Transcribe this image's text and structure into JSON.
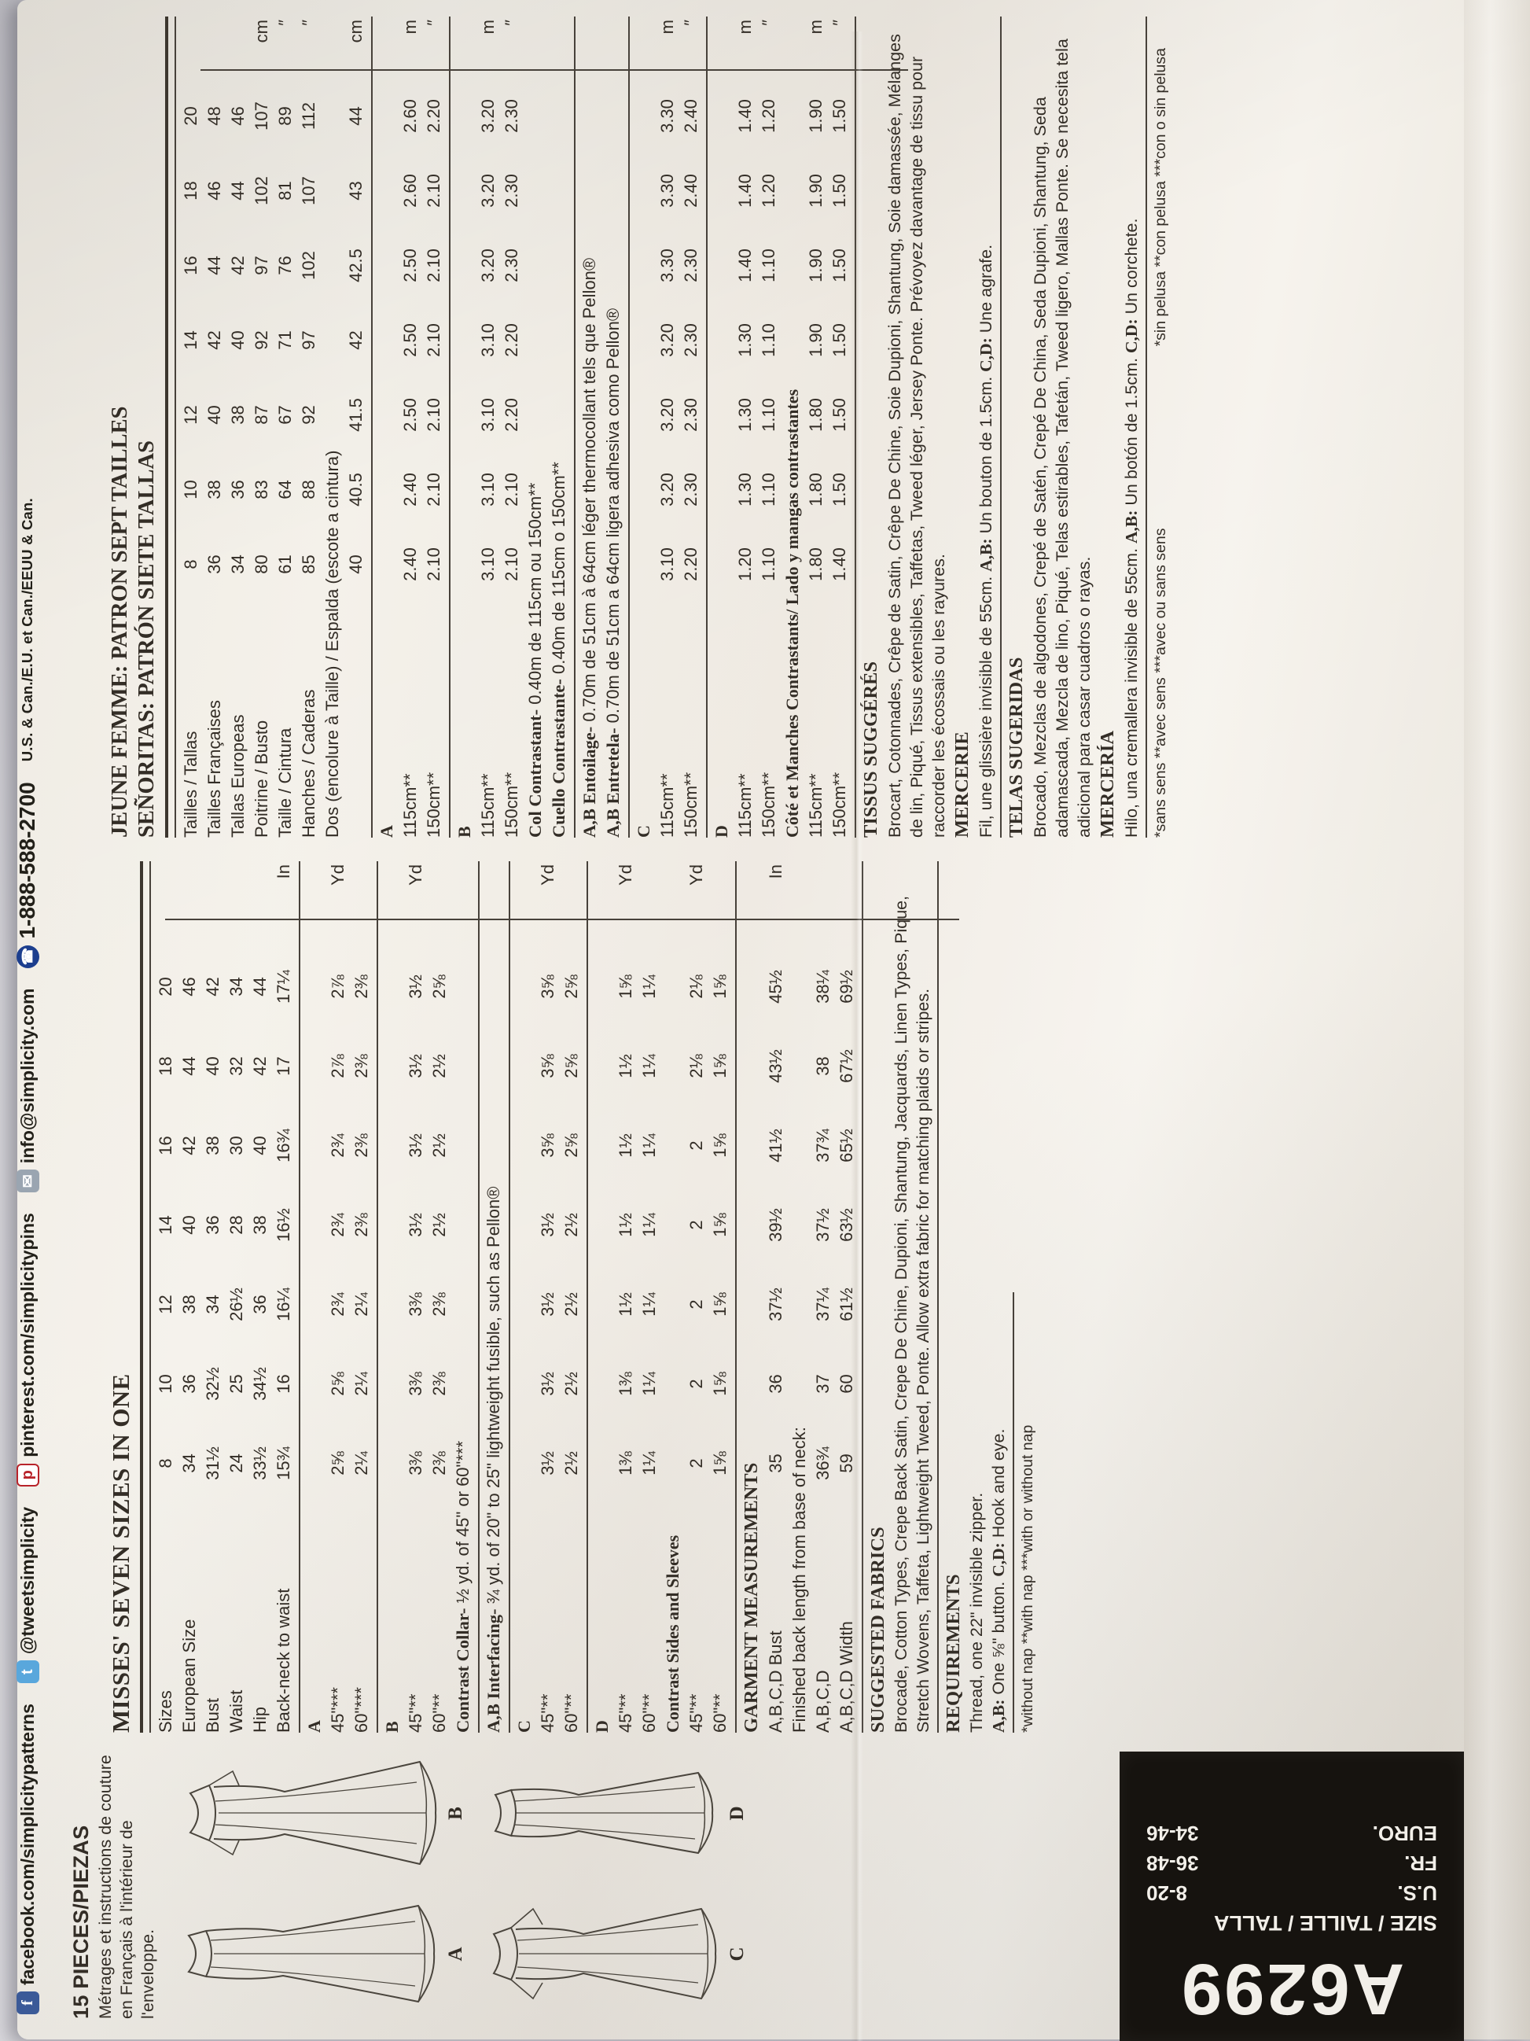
{
  "contact_strip": {
    "items": [
      {
        "icon": "facebook-icon",
        "text": "facebook.com/simplicitypatterns"
      },
      {
        "icon": "twitter-icon",
        "text": "@tweetsimplicity"
      },
      {
        "icon": "pinterest-icon",
        "text": "pinterest.com/simplicitypins"
      },
      {
        "icon": "email-icon",
        "text": "info@simplicity.com"
      },
      {
        "icon": "phone-icon",
        "text": "1-888-588-2700"
      }
    ],
    "suffix": "U.S. & Can./E.U. et Can./EEUU & Can."
  },
  "left_panel": {
    "pieces_title": "15 PIECES/PIEZAS",
    "note_lines": "Métrages et instructions de couture en Français à l'intérieur de l'enveloppe.",
    "views": [
      "A",
      "B",
      "C",
      "D"
    ]
  },
  "size_box": {
    "code": "A6299",
    "header": "SIZE / TAILLE / TALLA",
    "rows": [
      {
        "label": "U.S.",
        "value": "8-20"
      },
      {
        "label": "FR.",
        "value": "36-48"
      },
      {
        "label": "EURO.",
        "value": "34-46"
      }
    ]
  },
  "english": {
    "title": "MISSES' SEVEN SIZES IN ONE",
    "rows": [
      {
        "label": "Sizes",
        "values": [
          "8",
          "10",
          "12",
          "14",
          "16",
          "18",
          "20"
        ]
      },
      {
        "label": "European Size",
        "values": [
          "34",
          "36",
          "38",
          "40",
          "42",
          "44",
          "46"
        ]
      },
      {
        "label": "Bust",
        "values": [
          "31½",
          "32½",
          "34",
          "36",
          "38",
          "40",
          "42"
        ]
      },
      {
        "label": "Waist",
        "values": [
          "24",
          "25",
          "26½",
          "28",
          "30",
          "32",
          "34"
        ]
      },
      {
        "label": "Hip",
        "values": [
          "33½",
          "34½",
          "36",
          "38",
          "40",
          "42",
          "44"
        ]
      },
      {
        "label": "Back-neck to waist",
        "values": [
          "15¾",
          "16",
          "16¼",
          "16½",
          "16¾",
          "17",
          "17¼"
        ],
        "unit": "In"
      },
      {
        "label": "A",
        "bold": true,
        "values": []
      },
      {
        "label": "45\"***",
        "values": [
          "2⅝",
          "2⅝",
          "2¾",
          "2¾",
          "2¾",
          "2⅞",
          "2⅞"
        ],
        "unit": "Yd"
      },
      {
        "label": "60\"***",
        "values": [
          "2¼",
          "2¼",
          "2¼",
          "2⅜",
          "2⅜",
          "2⅜",
          "2⅜"
        ]
      },
      {
        "label": "B",
        "bold": true,
        "values": []
      },
      {
        "label": "45\"**",
        "values": [
          "3⅜",
          "3⅜",
          "3⅜",
          "3½",
          "3½",
          "3½",
          "3½"
        ],
        "unit": "Yd"
      },
      {
        "label": "60\"**",
        "values": [
          "2⅜",
          "2⅜",
          "2⅜",
          "2½",
          "2½",
          "2½",
          "2⅝"
        ]
      },
      {
        "label": "C",
        "bold": true,
        "values": []
      },
      {
        "label": "45\"**",
        "values": [
          "3½",
          "3½",
          "3½",
          "3½",
          "3⅝",
          "3⅝",
          "3⅝"
        ],
        "unit": "Yd"
      },
      {
        "label": "60\"**",
        "values": [
          "2½",
          "2½",
          "2½",
          "2½",
          "2⅝",
          "2⅝",
          "2⅝"
        ]
      },
      {
        "label": "D",
        "bold": true,
        "values": []
      },
      {
        "label": "45\"**",
        "values": [
          "1⅜",
          "1⅜",
          "1½",
          "1½",
          "1½",
          "1½",
          "1⅝"
        ],
        "unit": "Yd"
      },
      {
        "label": "60\"**",
        "values": [
          "1¼",
          "1¼",
          "1¼",
          "1¼",
          "1¼",
          "1¼",
          "1¼"
        ]
      },
      {
        "label": "Contrast Sides and Sleeves",
        "bold": true,
        "values": []
      },
      {
        "label": "45\"**",
        "values": [
          "2",
          "2",
          "2",
          "2",
          "2",
          "2⅛",
          "2⅛"
        ],
        "unit": "Yd"
      },
      {
        "label": "60\"**",
        "values": [
          "1⅝",
          "1⅝",
          "1⅝",
          "1⅝",
          "1⅝",
          "1⅝",
          "1⅝"
        ]
      },
      {
        "label": "A,B,C,D Bust",
        "values": [
          "35",
          "36",
          "37½",
          "39½",
          "41½",
          "43½",
          "45½"
        ],
        "unit": "In"
      },
      {
        "label": "Finished back length from base of neck:",
        "values": []
      },
      {
        "label": "A,B,C,D",
        "values": [
          "36¾",
          "37",
          "37¼",
          "37½",
          "37¾",
          "38",
          "38¼"
        ]
      },
      {
        "label": "A,B,C,D Width",
        "values": [
          "59",
          "60",
          "61½",
          "63½",
          "65½",
          "67½",
          "69½"
        ]
      }
    ],
    "lines": {
      "collar": [
        {
          "b": "Contrast Collar-"
        },
        {
          "t": " ½ yd. of 45\" or 60\"***"
        }
      ],
      "interfacing": [
        {
          "b": "A,B Interfacing-"
        },
        {
          "t": " ¾ yd. of 20\" to 25\" lightweight fusible, such as Pellon®"
        }
      ],
      "req1": [
        {
          "t": "Thread, one 22\" invisible zipper."
        }
      ],
      "req2": [
        {
          "b": "A,B:"
        },
        {
          "t": " One ⅝\" button. "
        },
        {
          "b": "C,D:"
        },
        {
          "t": " Hook and eye."
        }
      ]
    },
    "garment_heading": "GARMENT MEASUREMENTS",
    "fabrics_heading": "SUGGESTED FABRICS",
    "fabrics_text": "Brocade, Cotton Types, Crepe Back Satin, Crepe De Chine, Dupioni, Shantung, Jacquards, Linen Types, Pique, Stretch Wovens, Taffeta, Lightweight Tweed, Ponte. Allow extra fabric for matching plaids or stripes.",
    "requirements_heading": "REQUIREMENTS",
    "footnote": "*without nap    **with nap    ***with or without nap"
  },
  "french": {
    "title1": "JEUNE FEMME: PATRON SEPT TAILLES",
    "title2": "SEÑORITAS: PATRÓN SIETE TALLAS",
    "rows": [
      {
        "label": "Tailles / Tallas",
        "values": [
          "8",
          "10",
          "12",
          "14",
          "16",
          "18",
          "20"
        ]
      },
      {
        "label": "Tailles Françaises",
        "values": [
          "36",
          "38",
          "40",
          "42",
          "44",
          "46",
          "48"
        ]
      },
      {
        "label": "Tallas Europeas",
        "values": [
          "34",
          "36",
          "38",
          "40",
          "42",
          "44",
          "46"
        ]
      },
      {
        "label": "Poitrine / Busto",
        "values": [
          "80",
          "83",
          "87",
          "92",
          "97",
          "102",
          "107"
        ],
        "unit": "cm"
      },
      {
        "label": "Taille / Cintura",
        "values": [
          "61",
          "64",
          "67",
          "71",
          "76",
          "81",
          "89"
        ],
        "unit": "″"
      },
      {
        "label": "Hanches / Caderas",
        "values": [
          "85",
          "88",
          "92",
          "97",
          "102",
          "107",
          "112"
        ],
        "unit": "″"
      },
      {
        "label": "",
        "values": [
          "40",
          "40.5",
          "41.5",
          "42",
          "42.5",
          "43",
          "44"
        ],
        "unit": "cm"
      },
      {
        "label": "A",
        "bold": true,
        "values": []
      },
      {
        "label": "115cm**",
        "values": [
          "2.40",
          "2.40",
          "2.50",
          "2.50",
          "2.50",
          "2.60",
          "2.60"
        ],
        "unit": "m"
      },
      {
        "label": "150cm**",
        "values": [
          "2.10",
          "2.10",
          "2.10",
          "2.10",
          "2.10",
          "2.10",
          "2.20"
        ],
        "unit": "″"
      },
      {
        "label": "B",
        "bold": true,
        "values": []
      },
      {
        "label": "115cm**",
        "values": [
          "3.10",
          "3.10",
          "3.10",
          "3.10",
          "3.20",
          "3.20",
          "3.20"
        ],
        "unit": "m"
      },
      {
        "label": "150cm**",
        "values": [
          "2.10",
          "2.10",
          "2.20",
          "2.20",
          "2.30",
          "2.30",
          "2.30"
        ],
        "unit": "″"
      },
      {
        "label": "C",
        "bold": true,
        "values": []
      },
      {
        "label": "115cm**",
        "values": [
          "3.10",
          "3.20",
          "3.20",
          "3.20",
          "3.30",
          "3.30",
          "3.30"
        ],
        "unit": "m"
      },
      {
        "label": "150cm**",
        "values": [
          "2.20",
          "2.30",
          "2.30",
          "2.30",
          "2.30",
          "2.40",
          "2.40"
        ],
        "unit": "″"
      },
      {
        "label": "D",
        "bold": true,
        "values": []
      },
      {
        "label": "115cm**",
        "values": [
          "1.20",
          "1.30",
          "1.30",
          "1.30",
          "1.40",
          "1.40",
          "1.40"
        ],
        "unit": "m"
      },
      {
        "label": "150cm**",
        "values": [
          "1.10",
          "1.10",
          "1.10",
          "1.10",
          "1.10",
          "1.20",
          "1.20"
        ],
        "unit": "″"
      },
      {
        "label": "Côté et Manches Contrastants/ Lado y mangas contrastantes",
        "bold": true,
        "values": []
      },
      {
        "label": "115cm**",
        "values": [
          "1.80",
          "1.80",
          "1.80",
          "1.90",
          "1.90",
          "1.90",
          "1.90"
        ],
        "unit": "m"
      },
      {
        "label": "150cm**",
        "values": [
          "1.40",
          "1.50",
          "1.50",
          "1.50",
          "1.50",
          "1.50",
          "1.50"
        ],
        "unit": "″"
      }
    ],
    "dos_label": "Dos (encolure à Taille) / Espalda (escote a cintura)",
    "lines": {
      "col": [
        {
          "b": "Col Contrastant-"
        },
        {
          "t": " 0.40m de 115cm ou 150cm**"
        }
      ],
      "cuello": [
        {
          "b": "Cuello Contrastante-"
        },
        {
          "t": " 0.40m de 115cm o 150cm**"
        }
      ],
      "entoilage": [
        {
          "b": "A,B Entoilage-"
        },
        {
          "t": " 0.70m de 51cm à 64cm léger thermocollant tels que Pellon®"
        }
      ],
      "entretela": [
        {
          "b": "A,B Entretela-"
        },
        {
          "t": " 0.70m de 51cm a 64cm ligera adhesiva como Pellon®"
        }
      ],
      "mercerie": [
        {
          "t": "Fil, une glissière invisible de 55cm. "
        },
        {
          "b": "A,B:"
        },
        {
          "t": " Un bouton de 1.5cm. "
        },
        {
          "b": "C,D:"
        },
        {
          "t": " Une agrafe."
        }
      ],
      "merceria": [
        {
          "t": "Hilo, una cremallera invisible de 55cm. "
        },
        {
          "b": "A,B:"
        },
        {
          "t": " Un botón de 1.5cm. "
        },
        {
          "b": "C,D:"
        },
        {
          "t": " Un corchete."
        }
      ]
    },
    "tissus_heading": "TISSUS SUGGÉRÉS",
    "tissus_text": "Brocart, Cotonnades, Crêpe de Satin, Crêpe De Chine, Soie Dupioni, Shantung, Soie damassée, Mélanges de lin, Piqué, Tissus extensibles, Taffetas, Tweed léger, Jersey Ponte. Prévoyez davantage de tissu pour raccorder les écossais ou les rayures.",
    "mercerie_heading": "MERCERIE",
    "telas_heading": "TELAS SUGERIDAS",
    "telas_text": "Brocado, Mezclas de algodones, Crepé de Satén, Crepé De China, Seda Dupioni, Shantung, Seda adamascada, Mezcla de lino, Piqué, Telas estirables, Tafetán, Tweed ligero, Mallas Ponte. Se necesita tela adicional para casar cuadros o rayas.",
    "merceria_heading": "MERCERÍA",
    "footnote_left": "*sans sens  **avec sens  ***avec ou sans sens",
    "footnote_right": "*sin pelusa  **con pelusa  ***con o sin pelusa"
  },
  "colors": {
    "ink": "#332d26",
    "paper": "#f2eee7",
    "box": "#16130f",
    "accent_fb": "#3b5a98",
    "accent_tw": "#59a7dc",
    "accent_pin": "#b8232a",
    "accent_ph": "#1c3e8e"
  }
}
